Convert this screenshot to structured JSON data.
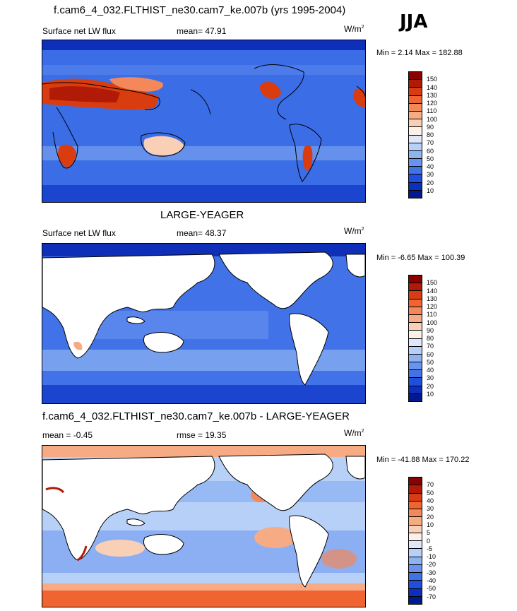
{
  "season": "JJA",
  "panels": [
    {
      "title": "f.cam6_4_032.FLTHIST_ne30.cam7_ke.007b (yrs 1995-2004)",
      "left_label": "Surface net LW flux",
      "center_label": "mean=  47.91",
      "right_unit_base": "W/m",
      "right_unit_sup": "2",
      "min_max": "Min =   2.14 Max = 182.88",
      "land_masked": false,
      "levels": [
        "150",
        "140",
        "130",
        "120",
        "110",
        "100",
        "90",
        "80",
        "70",
        "60",
        "50",
        "40",
        "30",
        "20",
        "10"
      ],
      "colors": [
        "#8b0000",
        "#b11a06",
        "#d93d0f",
        "#ef6430",
        "#f3885a",
        "#f7ab85",
        "#f9cfb5",
        "#fcf0e8",
        "#dde9fb",
        "#b7d0f7",
        "#8fb3f2",
        "#6894ee",
        "#4272e8",
        "#1f4fde",
        "#0d2fbf",
        "#001890"
      ]
    },
    {
      "title": "LARGE-YEAGER",
      "left_label": "Surface net LW flux",
      "center_label": "mean=  48.37",
      "right_unit_base": "W/m",
      "right_unit_sup": "2",
      "min_max": "Min =  -6.65 Max = 100.39",
      "land_masked": true,
      "levels": [
        "150",
        "140",
        "130",
        "120",
        "110",
        "100",
        "90",
        "80",
        "70",
        "60",
        "50",
        "40",
        "30",
        "20",
        "10"
      ],
      "colors": [
        "#8b0000",
        "#b11a06",
        "#d93d0f",
        "#ef6430",
        "#f3885a",
        "#f7ab85",
        "#f9cfb5",
        "#fcf0e8",
        "#dde9fb",
        "#b7d0f7",
        "#8fb3f2",
        "#6894ee",
        "#4272e8",
        "#1f4fde",
        "#0d2fbf",
        "#001890"
      ]
    },
    {
      "title": "f.cam6_4_032.FLTHIST_ne30.cam7_ke.007b - LARGE-YEAGER",
      "left_label": "mean =  -0.45",
      "center_label": "rmse =  19.35",
      "right_unit_base": "W/m",
      "right_unit_sup": "2",
      "min_max": "Min = -41.88 Max = 170.22",
      "land_masked": true,
      "levels": [
        "70",
        "50",
        "40",
        "30",
        "20",
        "10",
        "5",
        "0",
        "-5",
        "-10",
        "-20",
        "-30",
        "-40",
        "-50",
        "-70"
      ],
      "colors": [
        "#8b0000",
        "#b11a06",
        "#d93d0f",
        "#ef6430",
        "#f3885a",
        "#f7ab85",
        "#f9cfb5",
        "#fcf0e8",
        "#dde9fb",
        "#b7d0f7",
        "#8fb3f2",
        "#6894ee",
        "#4272e8",
        "#1f4fde",
        "#0d2fbf",
        "#001890"
      ]
    }
  ]
}
